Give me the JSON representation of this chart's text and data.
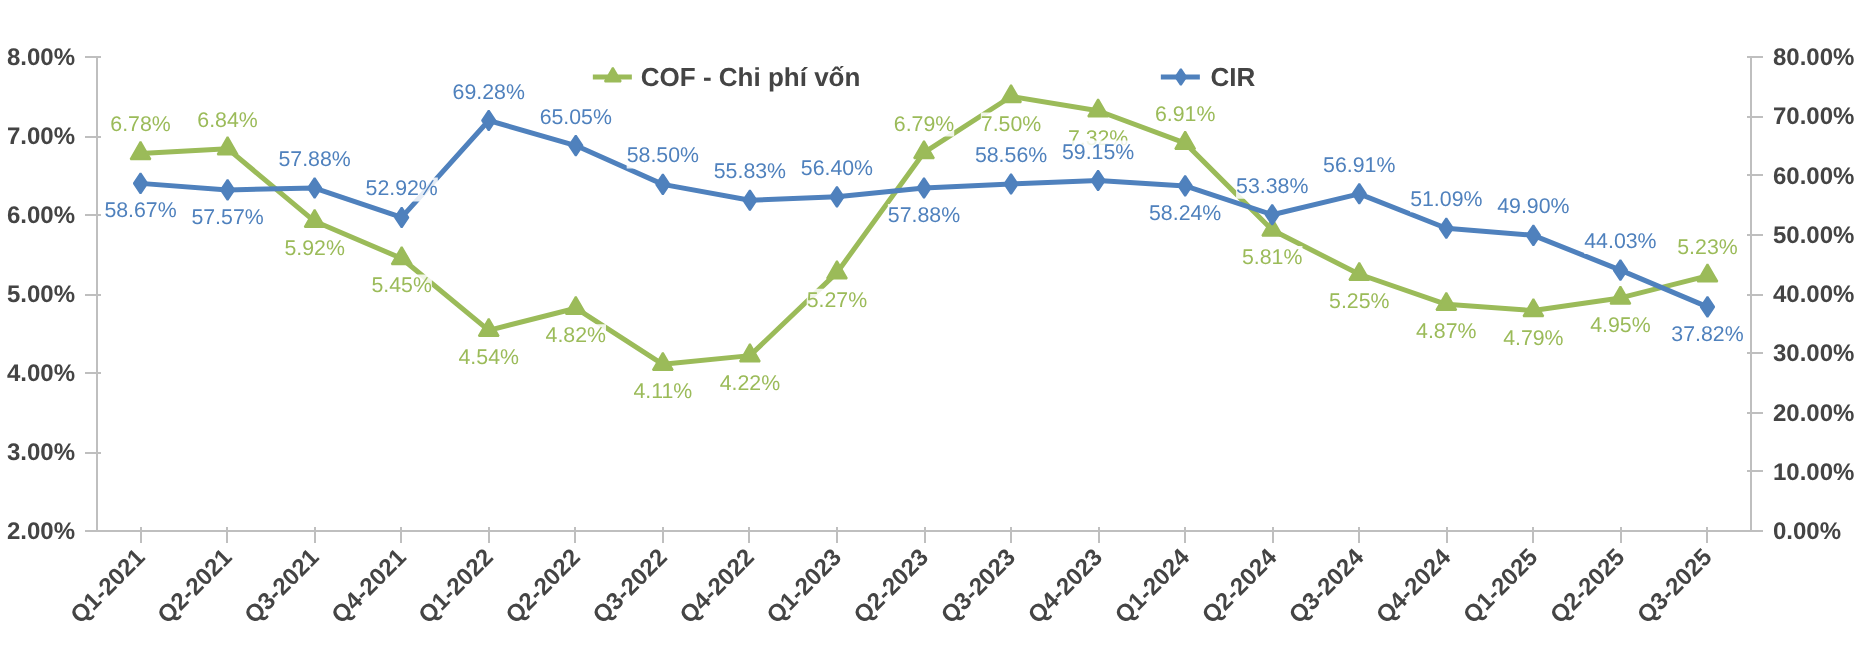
{
  "chart_data": {
    "type": "line",
    "categories": [
      "Q1-2021",
      "Q2-2021",
      "Q3-2021",
      "Q4-2021",
      "Q1-2022",
      "Q2-2022",
      "Q3-2022",
      "Q4-2022",
      "Q1-2023",
      "Q2-2023",
      "Q3-2023",
      "Q4-2023",
      "Q1-2024",
      "Q2-2024",
      "Q3-2024",
      "Q4-2024",
      "Q1-2025",
      "Q2-2025",
      "Q3-2025"
    ],
    "series": [
      {
        "name": "COF - Chi phí vốn",
        "color": "#9bbb59",
        "marker": "triangle",
        "values": [
          6.78,
          6.84,
          5.92,
          5.45,
          4.54,
          4.82,
          4.11,
          4.22,
          5.27,
          6.79,
          7.5,
          7.32,
          6.91,
          5.81,
          5.25,
          4.87,
          4.79,
          4.95,
          5.23
        ],
        "value_labels": [
          "6.78%",
          "6.84%",
          "5.92%",
          "5.45%",
          "4.54%",
          "4.82%",
          "4.11%",
          "4.22%",
          "5.27%",
          "6.79%",
          "7.50%",
          "7.32%",
          "6.91%",
          "5.81%",
          "5.25%",
          "4.87%",
          "4.79%",
          "4.95%",
          "5.23%"
        ]
      },
      {
        "name": "CIR",
        "color": "#4f81bd",
        "marker": "diamond",
        "axis": "y2",
        "values": [
          58.67,
          57.57,
          57.88,
          52.92,
          69.28,
          65.05,
          58.5,
          55.83,
          56.4,
          57.88,
          58.56,
          59.15,
          58.24,
          53.38,
          56.91,
          51.09,
          49.9,
          44.03,
          37.82
        ],
        "value_labels": [
          "58.67%",
          "57.57%",
          "57.88%",
          "52.92%",
          "69.28%",
          "65.05%",
          "58.50%",
          "55.83%",
          "56.40%",
          "57.88%",
          "58.56%",
          "59.15%",
          "58.24%",
          "53.38%",
          "56.91%",
          "51.09%",
          "49.90%",
          "44.03%",
          "37.82%"
        ]
      }
    ],
    "ylim": [
      2,
      8
    ],
    "yticks": [
      {
        "value": 2,
        "label": "2.00%"
      },
      {
        "value": 3,
        "label": "3.00%"
      },
      {
        "value": 4,
        "label": "4.00%"
      },
      {
        "value": 5,
        "label": "5.00%"
      },
      {
        "value": 6,
        "label": "6.00%"
      },
      {
        "value": 7,
        "label": "7.00%"
      },
      {
        "value": 8,
        "label": "8.00%"
      }
    ],
    "y2lim": [
      0,
      80
    ],
    "y2ticks": [
      {
        "value": 0,
        "label": "0.00%"
      },
      {
        "value": 10,
        "label": "10.00%"
      },
      {
        "value": 20,
        "label": "20.00%"
      },
      {
        "value": 30,
        "label": "30.00%"
      },
      {
        "value": 40,
        "label": "40.00%"
      },
      {
        "value": 50,
        "label": "50.00%"
      },
      {
        "value": 60,
        "label": "60.00%"
      },
      {
        "value": 70,
        "label": "70.00%"
      },
      {
        "value": 80,
        "label": "80.00%"
      }
    ],
    "grid": false,
    "legend": "top",
    "line_style": "solid"
  }
}
